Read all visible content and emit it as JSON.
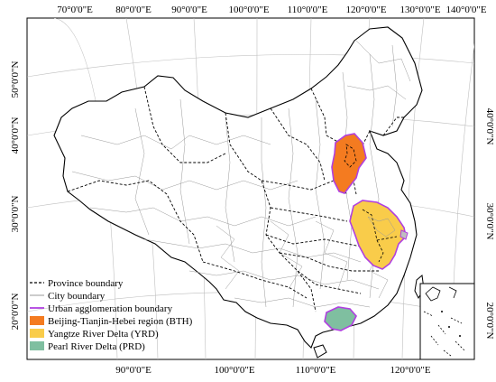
{
  "map": {
    "top_longitudes": [
      "70°0'0\"E",
      "80°0'0\"E",
      "90°0'0\"E",
      "100°0'0\"E",
      "110°0'0\"E",
      "120°0'0\"E",
      "130°0'0\"E",
      "140°0'0\"E"
    ],
    "bottom_longitudes": [
      "90°0'0\"E",
      "100°0'0\"E",
      "110°0'0\"E",
      "120°0'0\"E"
    ],
    "left_latitudes": [
      "50°0'0\"N",
      "40°0'0\"N",
      "30°0'0\"N",
      "20°0'0\"N"
    ],
    "right_latitudes": [
      "40°0'0\"N",
      "30°0'0\"N",
      "20°0'0\"N"
    ]
  },
  "legend": {
    "province": "Province boundary",
    "city": "City boundary",
    "urban": "Urban agglomeration boundary",
    "bth": "Beijing-Tianjin-Hebei region (BTH)",
    "yrd": "Yangtze River Delta (YRD)",
    "prd": "Pearl River Delta (PRD)"
  },
  "colors": {
    "bth": "#F47B20",
    "yrd": "#F9CC4A",
    "prd": "#7FBFA0",
    "urban_boundary": "#B040E0",
    "province_boundary": "#000000",
    "city_boundary": "#9a9a9a"
  }
}
